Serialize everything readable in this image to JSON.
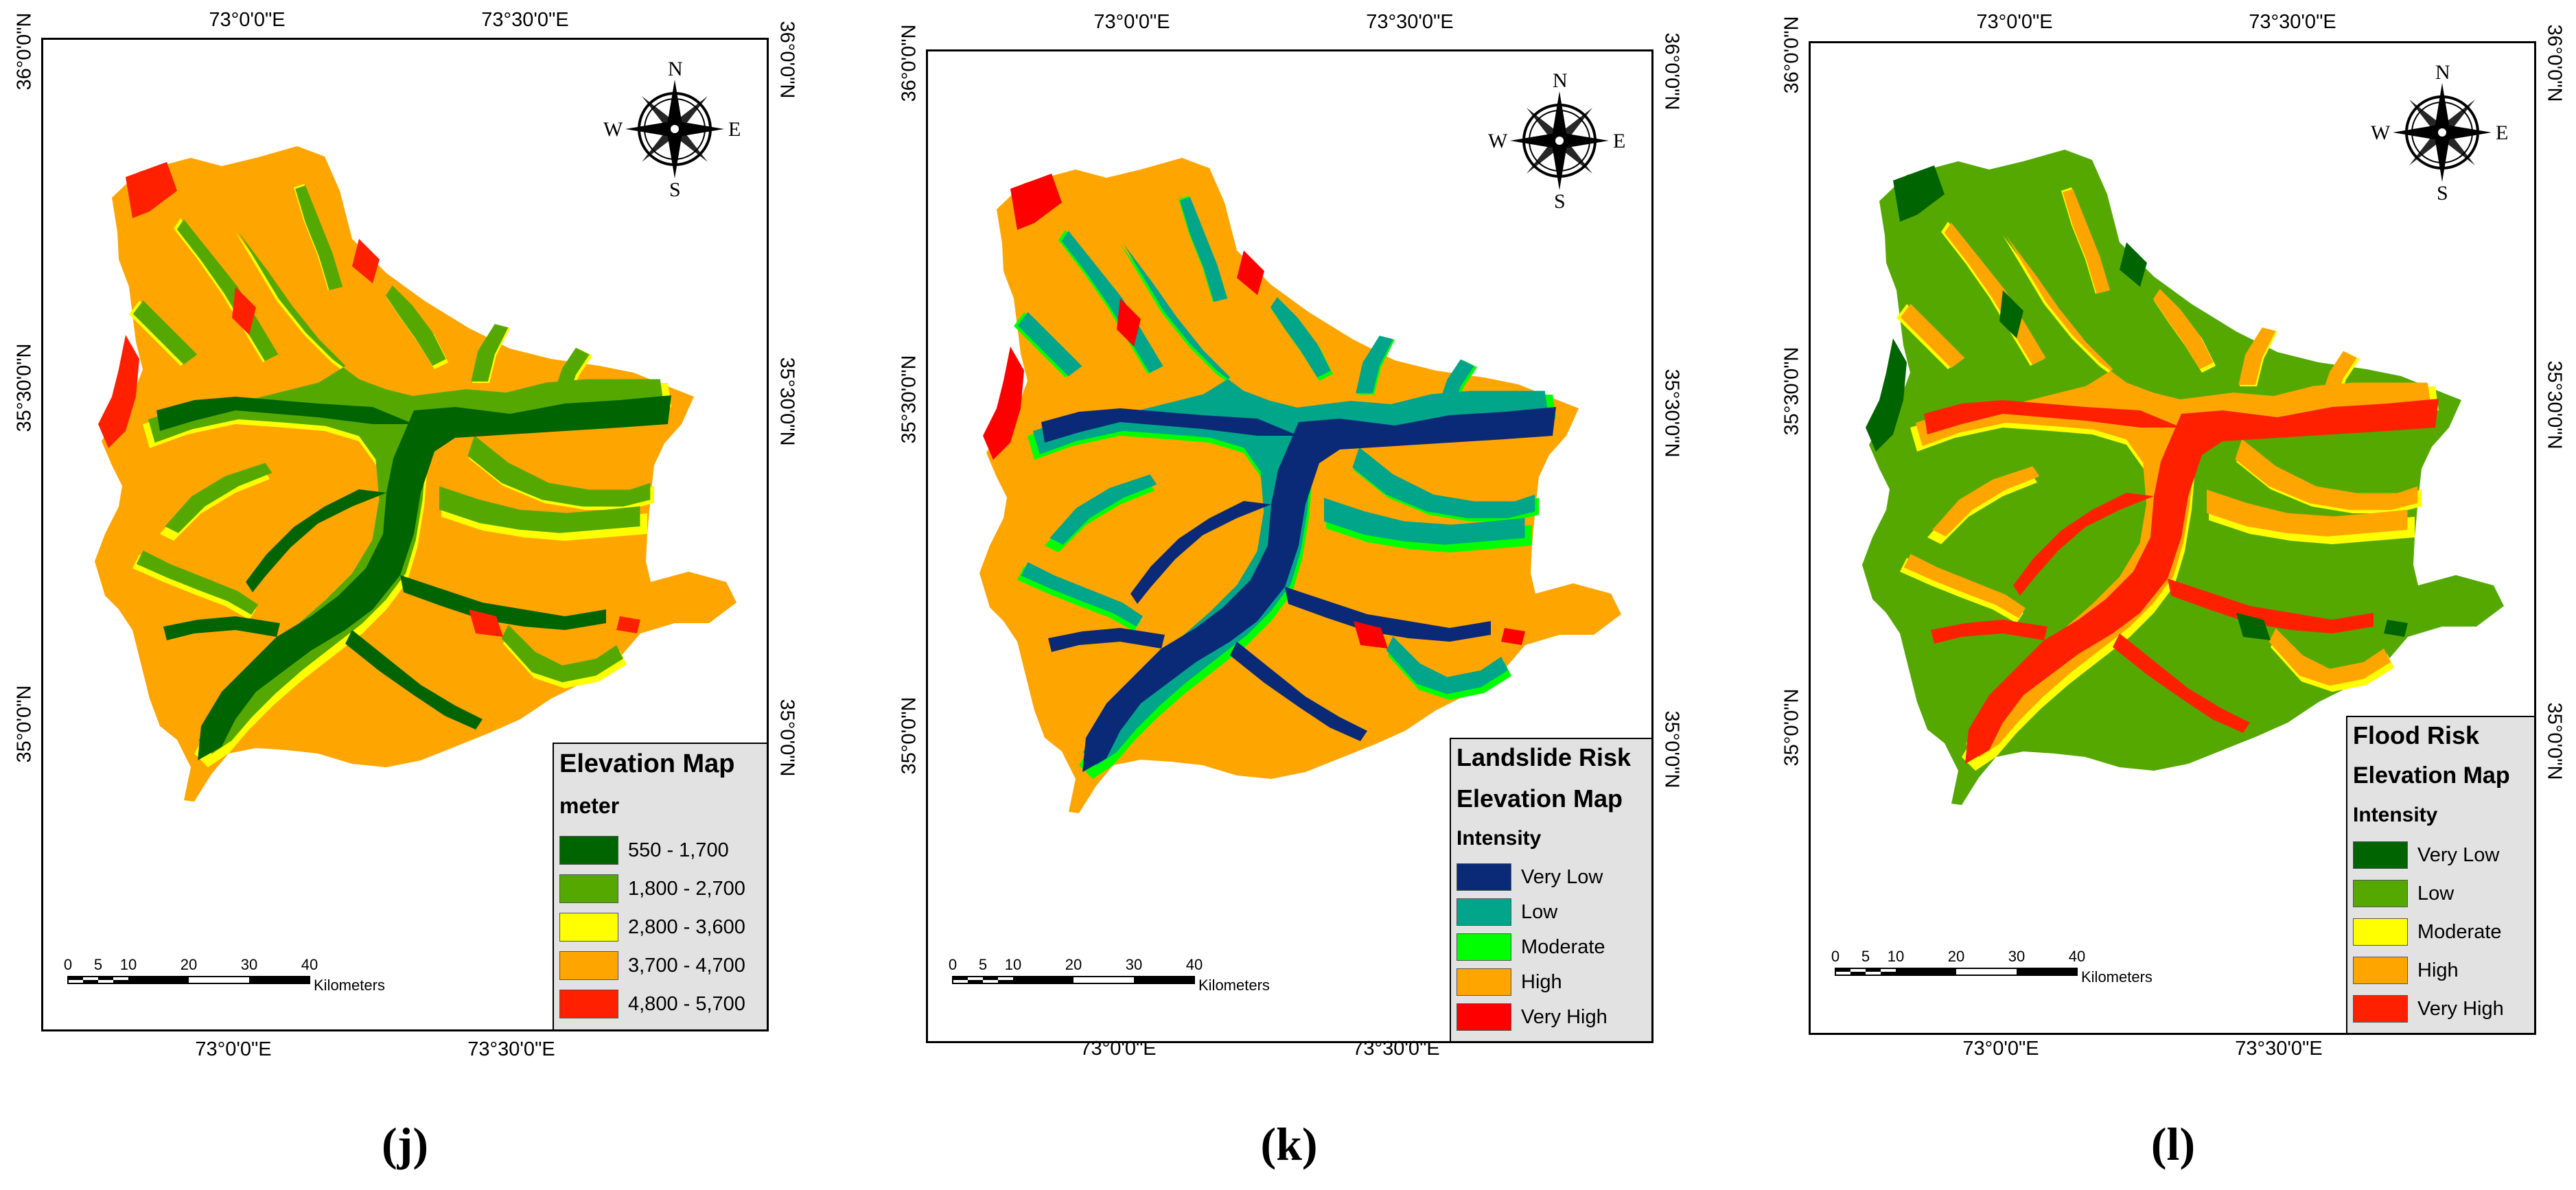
{
  "coords": {
    "top_labels": [
      "73°0'0\"E",
      "73°30'0\"E"
    ],
    "bottom_labels": [
      "73°0'0\"E",
      "73°30'0\"E"
    ],
    "left_labels": [
      "36°0'0\"N",
      "35°30'0\"N",
      "35°0'0\"N"
    ],
    "right_labels": [
      "36°0'0\"N",
      "35°30'0\"N",
      "35°0'0\"N"
    ]
  },
  "compass": {
    "n": "N",
    "s": "S",
    "e": "E",
    "w": "W"
  },
  "scale": {
    "ticks": [
      "0",
      "5",
      "10",
      "20",
      "30",
      "40"
    ],
    "unit": "Kilometers"
  },
  "panels": [
    {
      "label": "(j)",
      "legend": {
        "title": "Elevation Map",
        "subtitle": "meter",
        "items": [
          {
            "label": "550 - 1,700",
            "color": "#006400"
          },
          {
            "label": "1,800 - 2,700",
            "color": "#55a800"
          },
          {
            "label": "2,800 - 3,600",
            "color": "#ffff00"
          },
          {
            "label": "3,700 - 4,700",
            "color": "#ffa500"
          },
          {
            "label": "4,800 - 5,700",
            "color": "#ff2000"
          }
        ]
      }
    },
    {
      "label": "(k)",
      "legend": {
        "title": "Landslide Risk",
        "title2": "Elevation Map",
        "subtitle": "Intensity",
        "items": [
          {
            "label": "Very Low",
            "color": "#0a2a78"
          },
          {
            "label": "Low",
            "color": "#00a58a"
          },
          {
            "label": "Moderate",
            "color": "#00ff00"
          },
          {
            "label": "High",
            "color": "#ffa500"
          },
          {
            "label": "Very High",
            "color": "#ff0000"
          }
        ]
      }
    },
    {
      "label": "(l)",
      "legend": {
        "title": "Flood Risk",
        "title2": "Elevation Map",
        "subtitle": "Intensity",
        "items": [
          {
            "label": "Very Low",
            "color": "#006400"
          },
          {
            "label": "Low",
            "color": "#55a800"
          },
          {
            "label": "Moderate",
            "color": "#ffff00"
          },
          {
            "label": "High",
            "color": "#ffa500"
          },
          {
            "label": "Very High",
            "color": "#ff2000"
          }
        ]
      }
    }
  ]
}
